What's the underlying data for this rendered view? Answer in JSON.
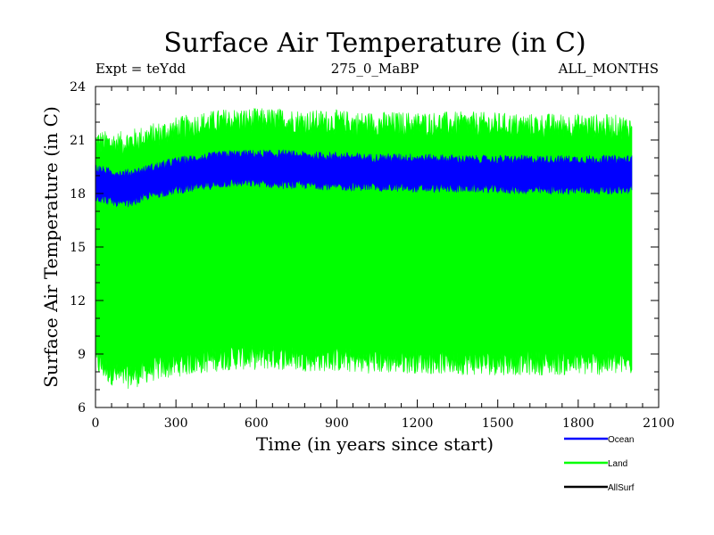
{
  "chart_data": {
    "type": "area",
    "title": "Surface Air Temperature (in C)",
    "subtitle_left": "Expt = teYdd",
    "subtitle_center": "275_0_MaBP",
    "subtitle_right": "ALL_MONTHS",
    "xlabel": "Time (in years since start)",
    "ylabel": "Surface Air Temperature (in C)",
    "xlim": [
      0,
      2100
    ],
    "ylim": [
      6,
      24
    ],
    "xticks": [
      0,
      300,
      600,
      900,
      1200,
      1500,
      1800,
      2100
    ],
    "yticks": [
      6,
      9,
      12,
      15,
      18,
      21,
      24
    ],
    "x_data_range": [
      0,
      2000
    ],
    "colors": {
      "Ocean": "#0000ff",
      "Land": "#00ff00",
      "AllSurf": "#000000"
    },
    "series": [
      {
        "name": "Land",
        "x": [
          0,
          50,
          100,
          150,
          200,
          300,
          400,
          500,
          600,
          700,
          800,
          900,
          1000,
          1200,
          1400,
          1600,
          1800,
          2000
        ],
        "lower": [
          8.6,
          8.0,
          7.7,
          7.8,
          8.1,
          8.4,
          8.6,
          8.8,
          8.8,
          8.8,
          8.7,
          8.7,
          8.6,
          8.6,
          8.5,
          8.5,
          8.5,
          8.5
        ],
        "upper": [
          20.9,
          20.8,
          20.8,
          21.0,
          21.2,
          21.6,
          21.9,
          22.1,
          22.1,
          22.1,
          22.0,
          22.0,
          21.9,
          21.9,
          21.9,
          21.8,
          21.8,
          21.7
        ]
      },
      {
        "name": "Ocean",
        "x": [
          0,
          50,
          100,
          150,
          200,
          300,
          400,
          500,
          600,
          700,
          800,
          900,
          1000,
          1200,
          1400,
          1600,
          1800,
          2000
        ],
        "lower": [
          17.8,
          17.6,
          17.4,
          17.6,
          17.9,
          18.2,
          18.4,
          18.6,
          18.6,
          18.5,
          18.5,
          18.4,
          18.4,
          18.3,
          18.3,
          18.2,
          18.2,
          18.2
        ],
        "upper": [
          19.4,
          19.2,
          19.1,
          19.2,
          19.4,
          19.8,
          20.0,
          20.2,
          20.2,
          20.2,
          20.1,
          20.1,
          20.0,
          20.0,
          19.9,
          19.9,
          19.9,
          19.9
        ]
      },
      {
        "name": "AllSurf",
        "x": [],
        "lower": [],
        "upper": []
      }
    ],
    "legend": [
      "Ocean",
      "Land",
      "AllSurf"
    ],
    "legend_position": "bottom-right"
  }
}
